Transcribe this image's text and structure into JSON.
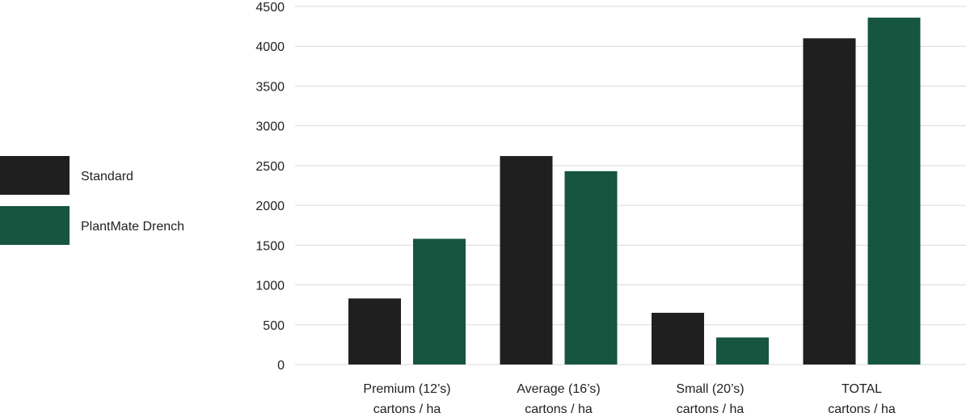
{
  "chart_data": {
    "type": "bar",
    "title": "",
    "xlabel": "",
    "ylabel": "",
    "ylim": [
      0,
      4500
    ],
    "yticks": [
      0,
      500,
      1000,
      1500,
      2000,
      2500,
      3000,
      3500,
      4000,
      4500
    ],
    "grid": true,
    "legend_position": "left",
    "categories": [
      [
        "Premium (12’s)",
        "cartons / ha"
      ],
      [
        "Average (16’s)",
        "cartons / ha"
      ],
      [
        "Small (20’s)",
        "cartons / ha"
      ],
      [
        "TOTAL",
        "cartons / ha"
      ]
    ],
    "series": [
      {
        "name": "Standard",
        "color": "#1f1f1f",
        "values": [
          830,
          2620,
          650,
          4100
        ]
      },
      {
        "name": "PlantMate Drench",
        "color": "#165540",
        "values": [
          1580,
          2430,
          340,
          4360
        ]
      }
    ],
    "gridline_color": "#d9d9d9"
  }
}
